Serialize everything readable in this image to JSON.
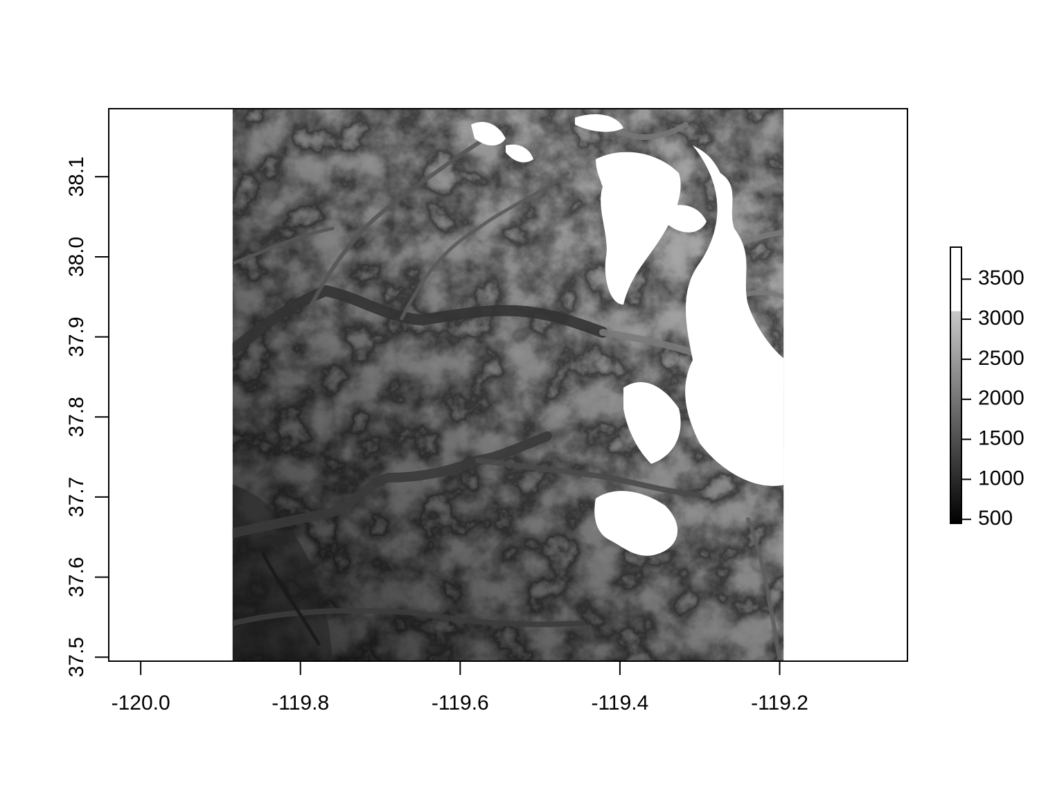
{
  "chart_data": {
    "type": "heatmap",
    "title": "",
    "xlabel": "",
    "ylabel": "",
    "x_ticks": [
      -120.0,
      -119.8,
      -119.6,
      -119.4,
      -119.2
    ],
    "x_tick_labels": [
      "-120.0",
      "-119.8",
      "-119.6",
      "-119.4",
      "-119.2"
    ],
    "y_ticks": [
      37.5,
      37.6,
      37.7,
      37.8,
      37.9,
      38.0,
      38.1
    ],
    "y_tick_labels": [
      "37.5",
      "37.6",
      "37.7",
      "37.8",
      "37.9",
      "38.0",
      "38.1"
    ],
    "xlim": [
      -120.04,
      -119.04
    ],
    "ylim": [
      37.495,
      38.185
    ],
    "raster_extent": {
      "xmin": -119.885,
      "xmax": -119.195,
      "ymin": 37.495,
      "ymax": 38.185
    },
    "value_range": [
      450,
      3900
    ],
    "colorbar_ticks": [
      500,
      1000,
      1500,
      2000,
      2500,
      3000,
      3500
    ],
    "colorbar_tick_labels": [
      "500",
      "1000",
      "1500",
      "2000",
      "2500",
      "3000",
      "3500"
    ],
    "colormap": "grayscale",
    "saturation_value": 3100,
    "low_color": "#000000",
    "high_color": "#ffffff",
    "legend_position": "right",
    "grid": false
  }
}
